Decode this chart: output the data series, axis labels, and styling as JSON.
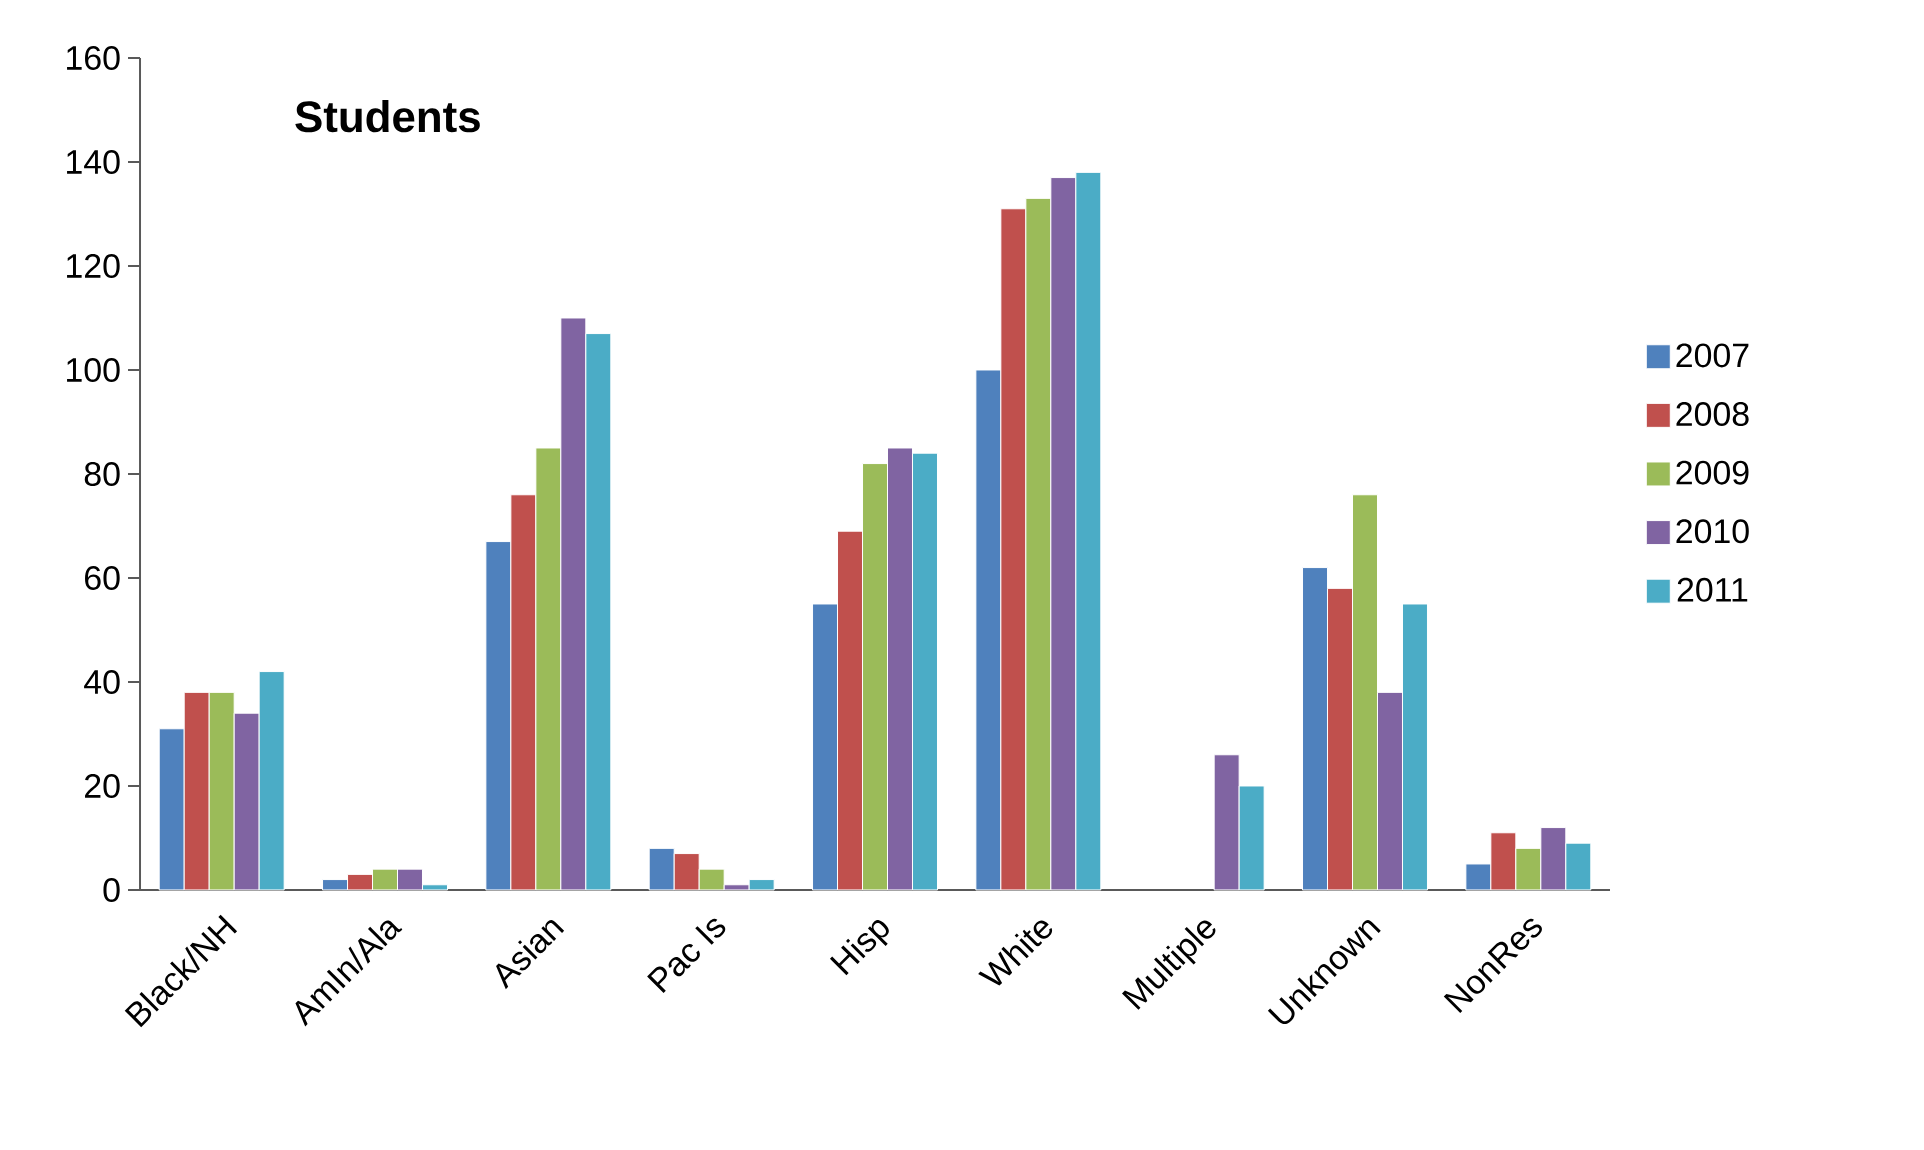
{
  "chart_data": {
    "type": "bar",
    "title": "Students",
    "categories": [
      "Black/NH",
      "AmIn/Ala",
      "Asian",
      "Pac Is",
      "Hisp",
      "White",
      "Multiple",
      "Unknown",
      "NonRes"
    ],
    "series": [
      {
        "name": "2007",
        "color": "#4f81bd",
        "values": [
          31,
          2,
          67,
          8,
          55,
          100,
          null,
          62,
          5
        ]
      },
      {
        "name": "2008",
        "color": "#c0504d",
        "values": [
          38,
          3,
          76,
          7,
          69,
          131,
          null,
          58,
          11
        ]
      },
      {
        "name": "2009",
        "color": "#9bbb59",
        "values": [
          38,
          4,
          85,
          4,
          82,
          133,
          null,
          76,
          8
        ]
      },
      {
        "name": "2010",
        "color": "#8064a2",
        "values": [
          34,
          4,
          110,
          1,
          85,
          137,
          26,
          38,
          12
        ]
      },
      {
        "name": "2011",
        "color": "#4bacc6",
        "values": [
          42,
          1,
          107,
          2,
          84,
          138,
          20,
          55,
          9
        ]
      }
    ],
    "ylim": [
      0,
      160
    ],
    "yticks": [
      0,
      20,
      40,
      60,
      80,
      100,
      120,
      140,
      160
    ],
    "grid": false,
    "legend": "right"
  }
}
